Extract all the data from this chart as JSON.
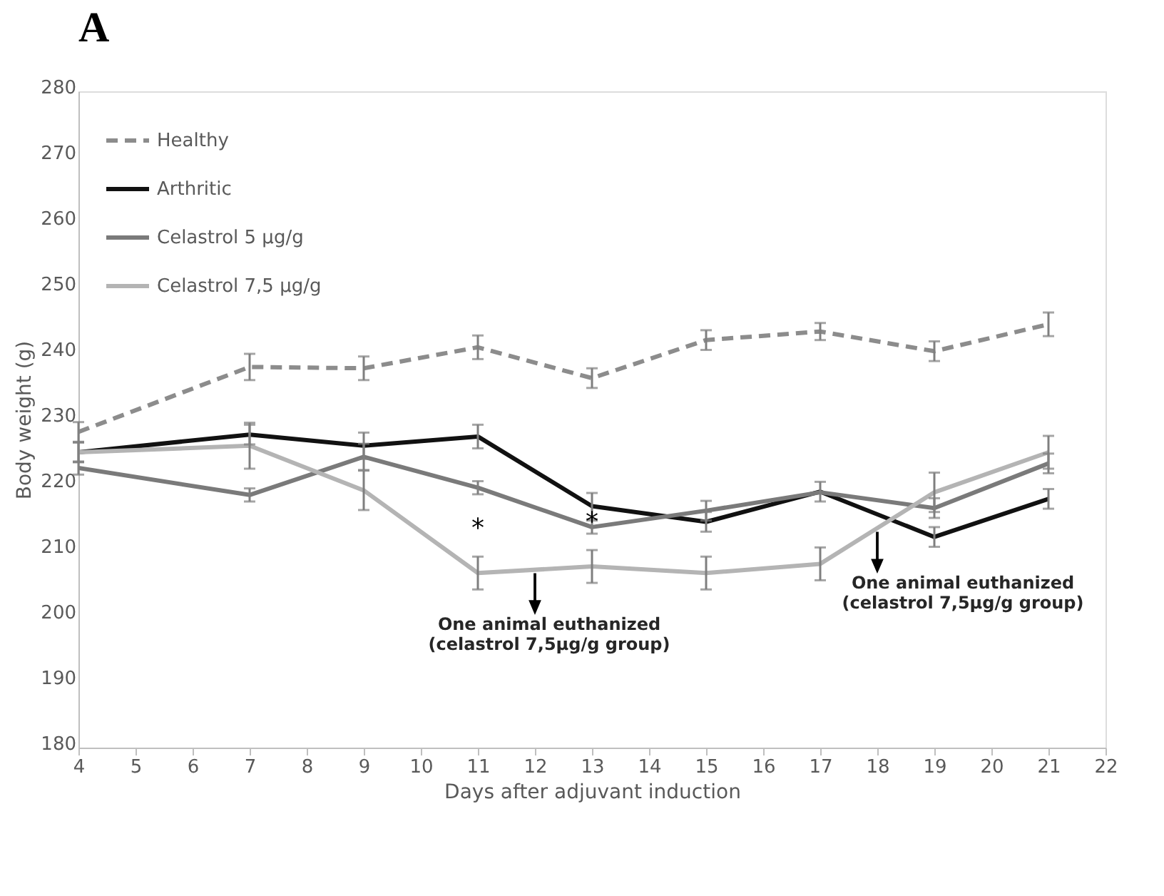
{
  "chart_data": {
    "type": "line",
    "title": "A",
    "xlabel": "Days after adjuvant induction",
    "ylabel": "Body weight (g)",
    "x": [
      4,
      7,
      9,
      11,
      13,
      15,
      17,
      19,
      21
    ],
    "series": [
      {
        "name": "Healthy",
        "color": "#8c8c8c",
        "line_style": "dashed",
        "values": [
          228.1,
          238.0,
          237.8,
          241.0,
          236.3,
          242.1,
          243.4,
          240.4,
          244.5
        ],
        "errors": [
          1.5,
          2,
          1.8,
          1.8,
          1.5,
          1.5,
          1.3,
          1.5,
          1.8
        ]
      },
      {
        "name": "Arthritic",
        "color": "#111111",
        "line_style": "solid",
        "values": [
          225.0,
          227.7,
          226.0,
          227.4,
          216.8,
          214.4,
          219.0,
          212.1,
          217.9
        ],
        "errors": [
          1.5,
          1.5,
          2,
          1.8,
          2,
          1.5,
          1.5,
          1.5,
          1.5
        ]
      },
      {
        "name": "Celastrol 5 µg/g",
        "color": "#7a7a7a",
        "line_style": "solid",
        "values": [
          222.6,
          218.5,
          224.3,
          219.6,
          213.6,
          216.1,
          218.9,
          216.5,
          223.3
        ],
        "errors": [
          1,
          1,
          2,
          1,
          1,
          1.5,
          null,
          1.5,
          1.5
        ]
      },
      {
        "name": "Celastrol 7,5 µg/g",
        "color": "#b4b4b4",
        "line_style": "solid",
        "values": [
          225.0,
          226.0,
          219.2,
          206.6,
          207.6,
          206.6,
          208.0,
          218.9,
          225.0
        ],
        "errors": [
          1.5,
          3.5,
          3,
          2.5,
          2.5,
          2.5,
          2.5,
          3,
          2.5
        ],
        "value_labels": [
          null,
          null,
          null,
          "*",
          "*",
          null,
          null,
          null,
          null
        ]
      }
    ],
    "xlim": [
      4,
      22
    ],
    "xticks": [
      4,
      5,
      6,
      7,
      8,
      9,
      10,
      11,
      12,
      13,
      14,
      15,
      16,
      17,
      18,
      19,
      20,
      21,
      22
    ],
    "ylim": [
      180,
      280
    ],
    "yticks": [
      180,
      190,
      200,
      210,
      220,
      230,
      240,
      250,
      260,
      270,
      280
    ],
    "grid": false,
    "legend": "top left",
    "marker": "none",
    "annotations": [
      {
        "text": "One animal euthanized\n(celastrol 7,5µg/g group)",
        "x": 12,
        "y": 207.1
      },
      {
        "text": "One animal euthanized\n(celastrol 7,5µg/g group)",
        "x": 18,
        "y": 213.4
      }
    ]
  }
}
